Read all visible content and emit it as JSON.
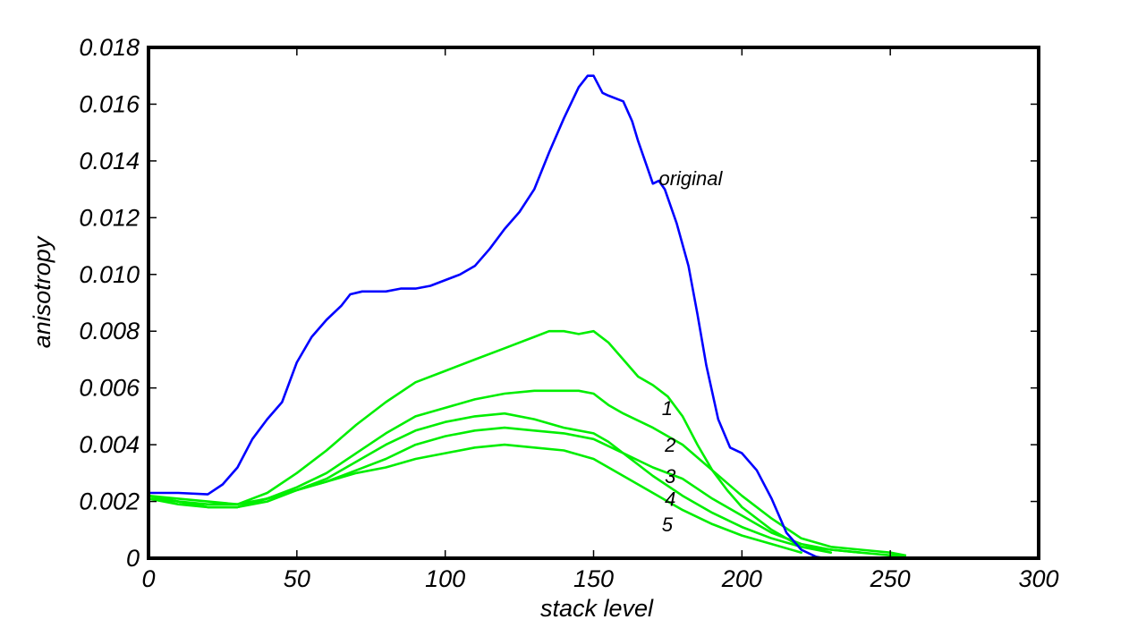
{
  "chart_data": {
    "type": "line",
    "title": "",
    "xlabel": "stack level",
    "ylabel": "anisotropy",
    "xlim": [
      0,
      300
    ],
    "ylim": [
      0,
      0.018
    ],
    "xticks": [
      0,
      50,
      100,
      150,
      200,
      250,
      300
    ],
    "yticks": [
      0,
      0.002,
      0.004,
      0.006,
      0.008,
      0.01,
      0.012,
      0.014,
      0.016,
      0.018
    ],
    "ytick_labels": [
      "0",
      "0.002",
      "0.004",
      "0.006",
      "0.008",
      "0.010",
      "0.012",
      "0.014",
      "0.016",
      "0.018"
    ],
    "xtick_labels": [
      "0",
      "50",
      "100",
      "150",
      "200",
      "250",
      "300"
    ],
    "grid": false,
    "series": [
      {
        "name": "original",
        "color": "#0000ff",
        "label_at": [
          172,
          0.0134
        ],
        "x": [
          0,
          10,
          20,
          25,
          30,
          35,
          40,
          45,
          50,
          55,
          60,
          65,
          68,
          72,
          75,
          80,
          85,
          90,
          95,
          100,
          105,
          110,
          115,
          120,
          125,
          130,
          135,
          140,
          145,
          148,
          150,
          153,
          155,
          160,
          163,
          165,
          168,
          170,
          172,
          174,
          178,
          182,
          185,
          188,
          192,
          196,
          200,
          205,
          210,
          215,
          220,
          225,
          228
        ],
        "y": [
          0.0023,
          0.0023,
          0.00225,
          0.0026,
          0.0032,
          0.0042,
          0.0049,
          0.0055,
          0.0069,
          0.0078,
          0.0084,
          0.0089,
          0.0093,
          0.0094,
          0.0094,
          0.0094,
          0.0095,
          0.0095,
          0.0096,
          0.0098,
          0.01,
          0.0103,
          0.0109,
          0.0116,
          0.0122,
          0.013,
          0.0143,
          0.0155,
          0.0166,
          0.017,
          0.017,
          0.0164,
          0.0163,
          0.0161,
          0.0154,
          0.0147,
          0.0138,
          0.0132,
          0.0133,
          0.013,
          0.0118,
          0.0103,
          0.0086,
          0.0068,
          0.0049,
          0.0039,
          0.0037,
          0.0031,
          0.0021,
          0.0009,
          0.0003,
          5e-05,
          0.0
        ]
      },
      {
        "name": "1",
        "color": "#00ee00",
        "label_at": [
          173,
          0.0053
        ],
        "x": [
          0,
          10,
          20,
          30,
          40,
          50,
          60,
          70,
          80,
          90,
          100,
          110,
          120,
          130,
          135,
          140,
          145,
          150,
          155,
          160,
          165,
          170,
          175,
          180,
          185,
          190,
          195,
          200,
          210,
          220,
          230,
          240,
          250,
          255
        ],
        "y": [
          0.0022,
          0.0021,
          0.002,
          0.0019,
          0.0023,
          0.003,
          0.0038,
          0.0047,
          0.0055,
          0.0062,
          0.0066,
          0.007,
          0.0074,
          0.0078,
          0.008,
          0.008,
          0.0079,
          0.008,
          0.0076,
          0.007,
          0.0064,
          0.0061,
          0.0057,
          0.005,
          0.004,
          0.0031,
          0.0024,
          0.0018,
          0.001,
          0.0004,
          0.0003,
          0.0002,
          0.0001,
          0.0001
        ]
      },
      {
        "name": "2",
        "color": "#00ee00",
        "label_at": [
          174,
          0.004
        ],
        "x": [
          0,
          10,
          20,
          30,
          40,
          50,
          60,
          70,
          80,
          90,
          100,
          110,
          120,
          130,
          140,
          145,
          150,
          155,
          160,
          170,
          180,
          190,
          200,
          210,
          220,
          230,
          240,
          250,
          255
        ],
        "y": [
          0.0022,
          0.002,
          0.0018,
          0.0018,
          0.0021,
          0.0025,
          0.003,
          0.0037,
          0.0044,
          0.005,
          0.0053,
          0.0056,
          0.0058,
          0.0059,
          0.0059,
          0.0059,
          0.0058,
          0.0054,
          0.0051,
          0.0046,
          0.004,
          0.0031,
          0.0022,
          0.0014,
          0.0007,
          0.0004,
          0.0003,
          0.0002,
          0.0001
        ]
      },
      {
        "name": "3",
        "color": "#00ee00",
        "label_at": [
          174,
          0.0029
        ],
        "x": [
          0,
          10,
          20,
          30,
          40,
          50,
          60,
          70,
          80,
          90,
          100,
          110,
          120,
          130,
          140,
          150,
          155,
          160,
          170,
          180,
          190,
          200,
          210,
          220,
          230,
          240
        ],
        "y": [
          0.0022,
          0.002,
          0.0018,
          0.0018,
          0.002,
          0.0024,
          0.0028,
          0.0034,
          0.004,
          0.0045,
          0.0048,
          0.005,
          0.0051,
          0.0049,
          0.0046,
          0.0044,
          0.0041,
          0.0037,
          0.0032,
          0.0028,
          0.0021,
          0.0015,
          0.0009,
          0.0005,
          0.0003,
          0.0002
        ]
      },
      {
        "name": "4",
        "color": "#00ee00",
        "label_at": [
          174,
          0.0021
        ],
        "x": [
          0,
          10,
          20,
          30,
          40,
          50,
          60,
          70,
          80,
          90,
          100,
          110,
          120,
          130,
          140,
          150,
          160,
          170,
          180,
          190,
          200,
          210,
          220,
          230
        ],
        "y": [
          0.0021,
          0.002,
          0.0019,
          0.0019,
          0.0021,
          0.0024,
          0.0027,
          0.0031,
          0.0035,
          0.004,
          0.0043,
          0.0045,
          0.0046,
          0.0045,
          0.0044,
          0.0042,
          0.0037,
          0.0029,
          0.0022,
          0.0016,
          0.0011,
          0.0007,
          0.0004,
          0.0002
        ]
      },
      {
        "name": "5",
        "color": "#00ee00",
        "label_at": [
          173,
          0.0012
        ],
        "x": [
          0,
          10,
          20,
          30,
          40,
          50,
          60,
          70,
          80,
          90,
          100,
          110,
          120,
          130,
          140,
          150,
          160,
          170,
          180,
          190,
          200,
          210,
          220
        ],
        "y": [
          0.0021,
          0.0019,
          0.0018,
          0.0018,
          0.0021,
          0.0024,
          0.0027,
          0.003,
          0.0032,
          0.0035,
          0.0037,
          0.0039,
          0.004,
          0.0039,
          0.0038,
          0.0035,
          0.0029,
          0.0023,
          0.0017,
          0.0012,
          0.0008,
          0.0005,
          0.0002
        ]
      }
    ]
  }
}
